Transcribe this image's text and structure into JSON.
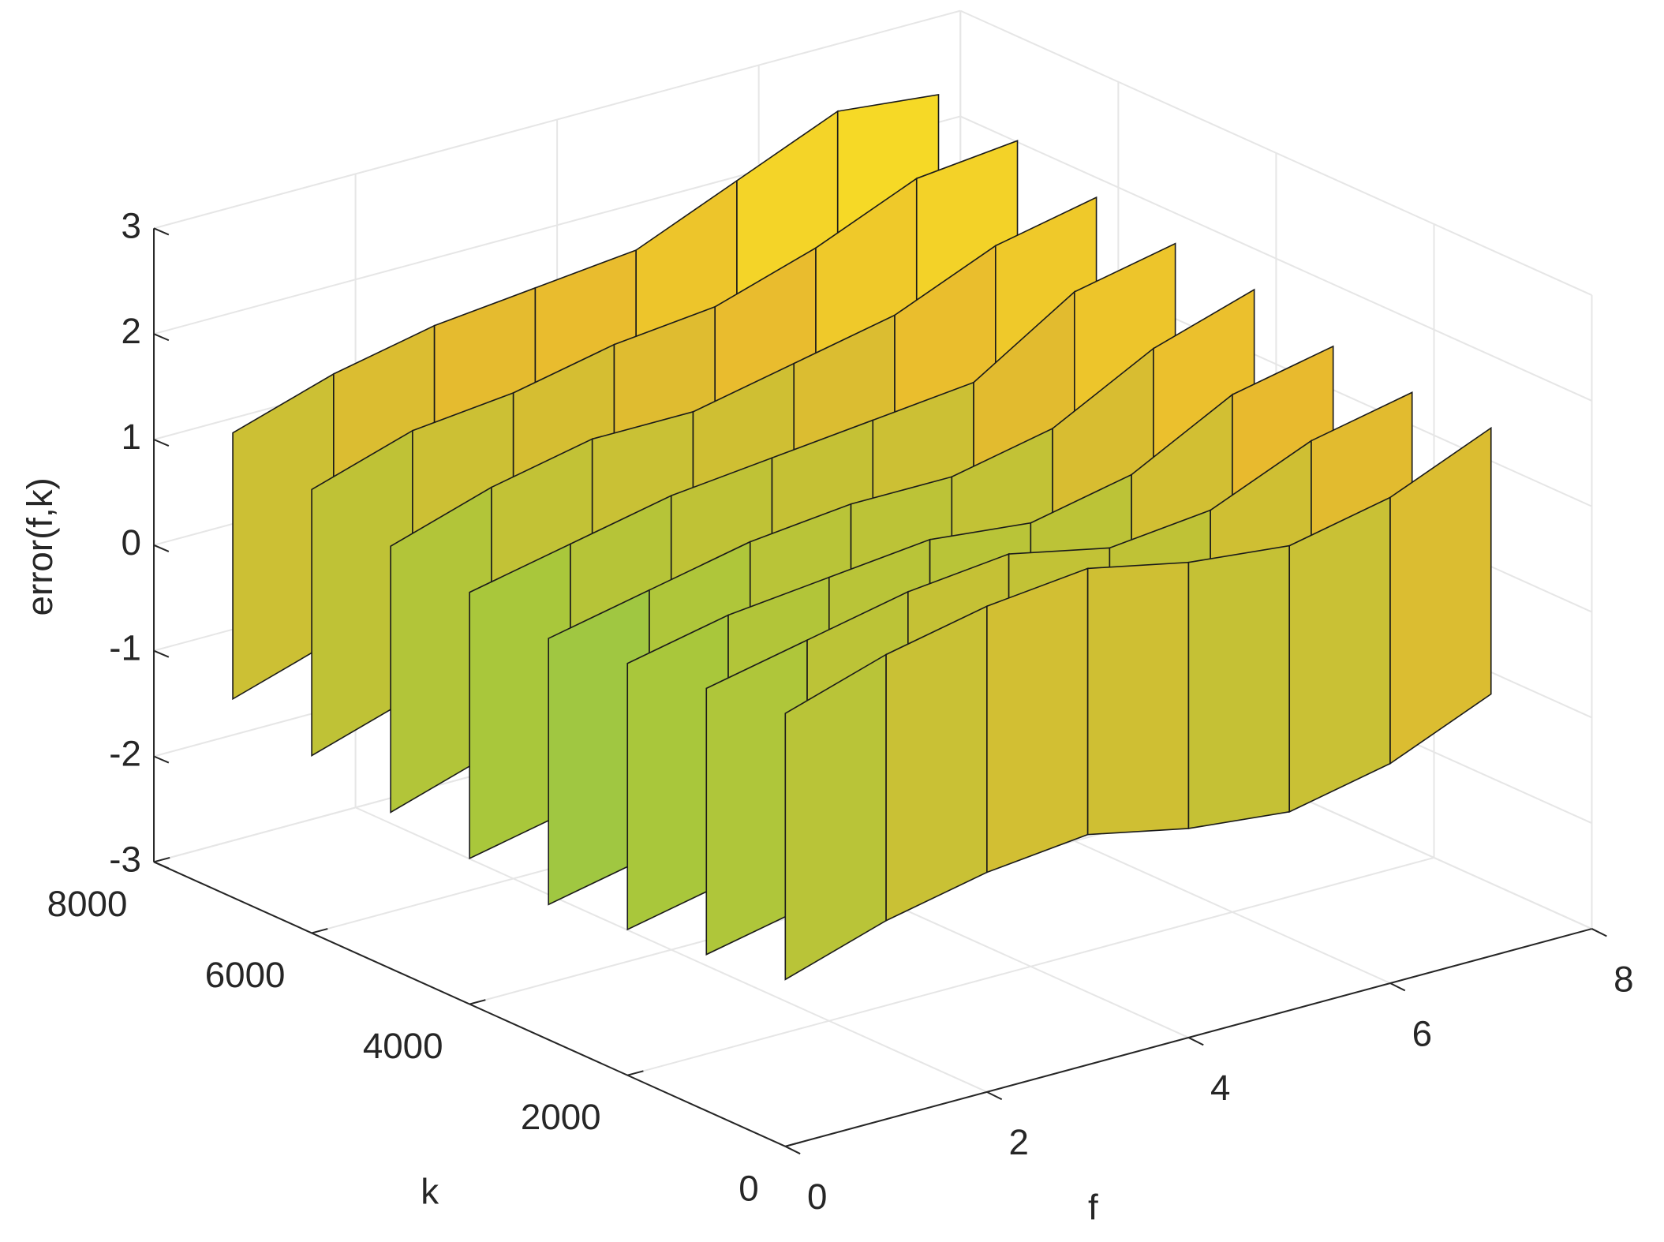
{
  "chart_data": {
    "type": "curtain3d",
    "xlabel": "f",
    "ylabel": "k",
    "zlabel": "error(f,k)",
    "x": [
      0,
      1,
      2,
      3,
      4,
      5,
      6,
      7
    ],
    "xlim": [
      0,
      8
    ],
    "xticks": [
      0,
      2,
      4,
      6,
      8
    ],
    "ylim": [
      0,
      8000
    ],
    "yticks": [
      0,
      2000,
      4000,
      6000,
      8000
    ],
    "zlim": [
      -3,
      3
    ],
    "zticks": [
      -3,
      -2,
      -1,
      0,
      1,
      2,
      3
    ],
    "grid": true,
    "colormap": [
      "#3f4fd8",
      "#1f96e0",
      "#11bcc2",
      "#4cc77a",
      "#a9c73b",
      "#e8ba2e",
      "#f9df25"
    ],
    "series": [
      {
        "k": 7000,
        "values": [
          1.4,
          1.7,
          1.9,
          2.0,
          2.1,
          2.5,
          2.9,
          2.8
        ]
      },
      {
        "k": 6000,
        "values": [
          1.2,
          1.5,
          1.6,
          1.8,
          1.9,
          2.2,
          2.6,
          2.7
        ]
      },
      {
        "k": 5000,
        "values": [
          1.0,
          1.3,
          1.5,
          1.5,
          1.7,
          1.9,
          2.3,
          2.5
        ]
      },
      {
        "k": 4000,
        "values": [
          0.9,
          1.1,
          1.3,
          1.4,
          1.5,
          1.6,
          2.2,
          2.4
        ]
      },
      {
        "k": 3000,
        "values": [
          0.8,
          1.0,
          1.2,
          1.3,
          1.3,
          1.5,
          2.0,
          2.3
        ]
      },
      {
        "k": 2000,
        "values": [
          0.9,
          1.1,
          1.2,
          1.3,
          1.2,
          1.4,
          1.9,
          2.1
        ]
      },
      {
        "k": 1000,
        "values": [
          1.0,
          1.2,
          1.4,
          1.5,
          1.3,
          1.4,
          1.8,
          2.0
        ]
      },
      {
        "k": 0,
        "values": [
          1.1,
          1.4,
          1.6,
          1.7,
          1.5,
          1.4,
          1.6,
          2.0
        ]
      }
    ]
  }
}
